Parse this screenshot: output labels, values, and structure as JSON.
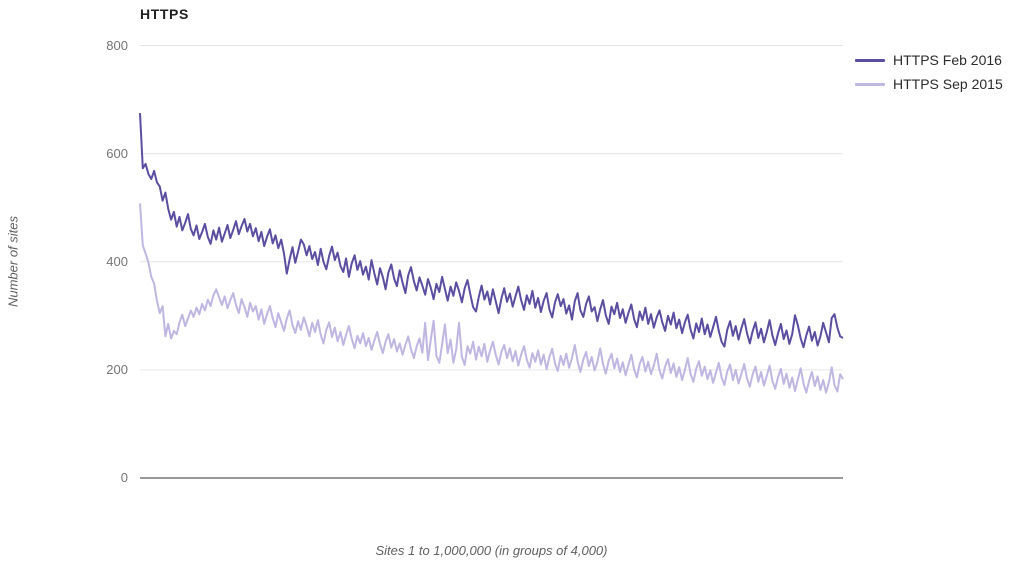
{
  "chart_data": {
    "type": "line",
    "title": "HTTPS",
    "ylabel": "Number of sites",
    "xlabel": "Sites 1 to 1,000,000 (in groups of 4,000)",
    "ylim": [
      0,
      800
    ],
    "y_ticks": [
      0,
      200,
      400,
      600,
      800
    ],
    "x_description": {
      "first_site": 1,
      "last_site": 1000000,
      "group_size": 4000,
      "n_points": 250
    },
    "grid": true,
    "legend_position": "top-right",
    "colors": {
      "grid": "#e6e6e6",
      "axis": "#333333",
      "tick_text": "#757575",
      "axis_title_text": "#616161",
      "title_text": "#212121",
      "legend_text": "#2b2b2b",
      "background": "#ffffff"
    },
    "series": [
      {
        "name": "HTTPS Feb 2016",
        "color": "#5b4ea1",
        "values": [
          675,
          573,
          581,
          562,
          553,
          568,
          547,
          539,
          513,
          528,
          498,
          478,
          492,
          465,
          483,
          458,
          472,
          488,
          461,
          449,
          467,
          442,
          455,
          470,
          446,
          433,
          458,
          441,
          463,
          437,
          452,
          468,
          444,
          459,
          475,
          451,
          466,
          479,
          456,
          470,
          447,
          462,
          438,
          455,
          429,
          446,
          460,
          434,
          449,
          425,
          441,
          415,
          378,
          404,
          427,
          398,
          419,
          441,
          432,
          412,
          429,
          405,
          418,
          394,
          424,
          400,
          386,
          411,
          428,
          403,
          417,
          392,
          381,
          406,
          372,
          397,
          412,
          385,
          401,
          376,
          391,
          367,
          403,
          379,
          358,
          388,
          372,
          349,
          380,
          395,
          369,
          355,
          384,
          361,
          342,
          375,
          390,
          364,
          347,
          371,
          356,
          339,
          368,
          352,
          331,
          359,
          344,
          372,
          350,
          328,
          354,
          337,
          362,
          346,
          325,
          351,
          366,
          340,
          316,
          308,
          335,
          356,
          330,
          345,
          321,
          349,
          327,
          305,
          332,
          351,
          326,
          341,
          317,
          336,
          354,
          329,
          311,
          338,
          322,
          346,
          315,
          333,
          307,
          328,
          342,
          312,
          297,
          325,
          340,
          318,
          331,
          304,
          319,
          293,
          327,
          342,
          310,
          298,
          322,
          336,
          308,
          316,
          290,
          312,
          329,
          301,
          285,
          317,
          303,
          324,
          296,
          312,
          287,
          305,
          321,
          294,
          279,
          308,
          292,
          315,
          285,
          303,
          278,
          297,
          310,
          288,
          272,
          300,
          284,
          306,
          277,
          293,
          268,
          288,
          302,
          275,
          258,
          286,
          270,
          295,
          266,
          284,
          261,
          279,
          298,
          272,
          252,
          243,
          274,
          290,
          263,
          281,
          256,
          277,
          294,
          268,
          249,
          272,
          288,
          259,
          276,
          251,
          270,
          292,
          264,
          246,
          268,
          285,
          257,
          273,
          248,
          266,
          301,
          283,
          258,
          242,
          264,
          280,
          254,
          270,
          245,
          262,
          287,
          269,
          251,
          296,
          303,
          278,
          262,
          259
        ]
      },
      {
        "name": "HTTPS Sep 2015",
        "color": "#c0b6e2",
        "values": [
          508,
          430,
          415,
          398,
          372,
          360,
          328,
          305,
          318,
          262,
          285,
          258,
          272,
          266,
          288,
          302,
          281,
          295,
          310,
          298,
          315,
          303,
          322,
          310,
          330,
          318,
          338,
          349,
          334,
          320,
          336,
          314,
          329,
          342,
          320,
          305,
          331,
          316,
          298,
          324,
          308,
          318,
          293,
          312,
          285,
          303,
          318,
          296,
          279,
          305,
          288,
          272,
          295,
          310,
          283,
          268,
          290,
          274,
          297,
          281,
          262,
          287,
          270,
          292,
          265,
          249,
          274,
          288,
          261,
          278,
          253,
          270,
          246,
          265,
          281,
          258,
          240,
          263,
          249,
          268,
          244,
          259,
          237,
          254,
          270,
          248,
          231,
          252,
          266,
          241,
          257,
          234,
          249,
          228,
          246,
          262,
          238,
          222,
          244,
          258,
          232,
          287,
          218,
          256,
          291,
          226,
          213,
          247,
          284,
          231,
          256,
          213,
          238,
          287,
          224,
          209,
          244,
          230,
          252,
          219,
          243,
          225,
          248,
          215,
          236,
          252,
          228,
          210,
          233,
          246,
          222,
          240,
          216,
          235,
          208,
          228,
          244,
          219,
          204,
          231,
          215,
          236,
          210,
          228,
          201,
          224,
          239,
          212,
          198,
          226,
          209,
          230,
          204,
          222,
          246,
          216,
          196,
          219,
          233,
          207,
          224,
          199,
          215,
          240,
          211,
          193,
          217,
          230,
          203,
          221,
          196,
          214,
          190,
          209,
          228,
          201,
          186,
          211,
          224,
          197,
          215,
          192,
          208,
          230,
          199,
          184,
          206,
          220,
          194,
          212,
          187,
          205,
          181,
          200,
          222,
          193,
          178,
          202,
          216,
          189,
          206,
          183,
          199,
          176,
          195,
          213,
          186,
          172,
          197,
          210,
          181,
          200,
          175,
          193,
          211,
          184,
          169,
          192,
          206,
          178,
          196,
          171,
          189,
          208,
          180,
          165,
          187,
          202,
          174,
          193,
          167,
          186,
          161,
          182,
          203,
          175,
          158,
          180,
          196,
          170,
          188,
          163,
          181,
          158,
          177,
          205,
          172,
          160,
          192,
          183
        ]
      }
    ]
  }
}
